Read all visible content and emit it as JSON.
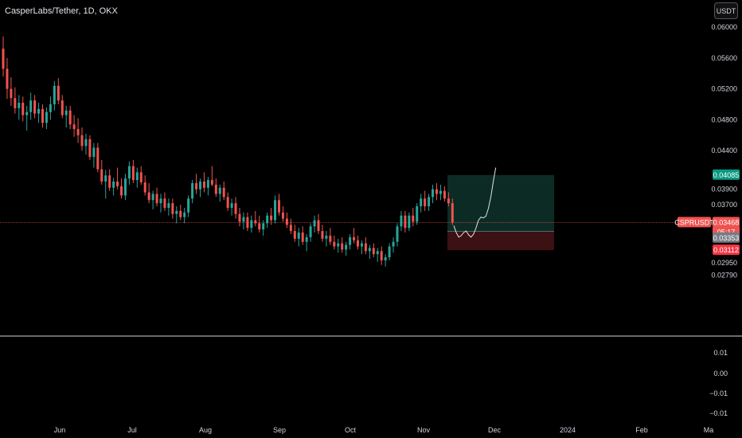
{
  "header": {
    "title": "CasperLabs/Tether, 1D, OKX",
    "currency_button": "USDT"
  },
  "chart_data": {
    "type": "candlestick",
    "symbol": "CSPRUSDT",
    "price_axis": {
      "ticks": [
        "0.06000",
        "0.05600",
        "0.05200",
        "0.04800",
        "0.04400",
        "0.03900",
        "0.03700",
        "0.02950",
        "0.02790"
      ],
      "tick_values": [
        0.06,
        0.056,
        0.052,
        0.048,
        0.044,
        0.039,
        0.037,
        0.0295,
        0.0279
      ]
    },
    "time_axis": {
      "labels": [
        "Jun",
        "Jul",
        "Aug",
        "Sep",
        "Oct",
        "Nov",
        "Dec",
        "2024",
        "Feb",
        "Ma"
      ]
    },
    "price_labels": {
      "target": "0.04085",
      "current": "0.03468",
      "countdown": "05:17",
      "entry": "0.03353",
      "stop": "0.03112"
    },
    "position": {
      "entry": 0.03353,
      "target": 0.04085,
      "stop": 0.03112
    },
    "indicator_axis": {
      "ticks": [
        "0.01",
        "0.00",
        "−0.01",
        "−0.01"
      ]
    },
    "colors": {
      "up": "#26a69a",
      "down": "#ef5350",
      "target_zone": "#0d2b25",
      "stop_zone": "#3b1114",
      "price_line": "#ef5350"
    },
    "candles": [
      [
        0.0572,
        0.0588,
        0.0536,
        0.0546
      ],
      [
        0.0546,
        0.056,
        0.0507,
        0.052
      ],
      [
        0.052,
        0.0535,
        0.0498,
        0.0508
      ],
      [
        0.0508,
        0.0522,
        0.0488,
        0.0495
      ],
      [
        0.0495,
        0.0512,
        0.048,
        0.0502
      ],
      [
        0.0502,
        0.051,
        0.0478,
        0.0486
      ],
      [
        0.0486,
        0.0498,
        0.0466,
        0.049
      ],
      [
        0.049,
        0.0515,
        0.048,
        0.0505
      ],
      [
        0.0505,
        0.0512,
        0.0482,
        0.0488
      ],
      [
        0.0488,
        0.0502,
        0.0476,
        0.0494
      ],
      [
        0.0494,
        0.05,
        0.047,
        0.0476
      ],
      [
        0.0476,
        0.0496,
        0.0468,
        0.049
      ],
      [
        0.049,
        0.051,
        0.048,
        0.05
      ],
      [
        0.05,
        0.053,
        0.0492,
        0.0524
      ],
      [
        0.0524,
        0.0534,
        0.05,
        0.0505
      ],
      [
        0.0505,
        0.0512,
        0.0482,
        0.0486
      ],
      [
        0.0486,
        0.0498,
        0.047,
        0.0492
      ],
      [
        0.0492,
        0.0498,
        0.0468,
        0.0474
      ],
      [
        0.0474,
        0.0486,
        0.0458,
        0.0468
      ],
      [
        0.0468,
        0.0482,
        0.045,
        0.046
      ],
      [
        0.046,
        0.047,
        0.044,
        0.0446
      ],
      [
        0.0446,
        0.0462,
        0.0435,
        0.0455
      ],
      [
        0.0455,
        0.046,
        0.0428,
        0.0432
      ],
      [
        0.0432,
        0.045,
        0.0418,
        0.0444
      ],
      [
        0.0444,
        0.045,
        0.0412,
        0.0416
      ],
      [
        0.0416,
        0.0428,
        0.0396,
        0.04
      ],
      [
        0.04,
        0.0415,
        0.0378,
        0.0408
      ],
      [
        0.0408,
        0.0416,
        0.0388,
        0.0392
      ],
      [
        0.0392,
        0.0405,
        0.0382,
        0.04
      ],
      [
        0.04,
        0.0418,
        0.039,
        0.0394
      ],
      [
        0.0394,
        0.0404,
        0.0378,
        0.0382
      ],
      [
        0.0382,
        0.041,
        0.0376,
        0.0404
      ],
      [
        0.0404,
        0.0426,
        0.0396,
        0.042
      ],
      [
        0.042,
        0.0428,
        0.0398,
        0.0402
      ],
      [
        0.0402,
        0.0418,
        0.0392,
        0.0412
      ],
      [
        0.0412,
        0.042,
        0.0396,
        0.0399
      ],
      [
        0.0399,
        0.0408,
        0.0382,
        0.0386
      ],
      [
        0.0386,
        0.0398,
        0.0372,
        0.0376
      ],
      [
        0.0376,
        0.0388,
        0.0364,
        0.0384
      ],
      [
        0.0384,
        0.0392,
        0.0368,
        0.0372
      ],
      [
        0.0372,
        0.0384,
        0.036,
        0.0378
      ],
      [
        0.0378,
        0.0386,
        0.0362,
        0.0366
      ],
      [
        0.0366,
        0.0378,
        0.0356,
        0.0372
      ],
      [
        0.0372,
        0.0378,
        0.0352,
        0.0358
      ],
      [
        0.0358,
        0.0368,
        0.0346,
        0.0362
      ],
      [
        0.0362,
        0.037,
        0.035,
        0.0354
      ],
      [
        0.0354,
        0.0366,
        0.0346,
        0.036
      ],
      [
        0.036,
        0.0382,
        0.0354,
        0.0378
      ],
      [
        0.0378,
        0.0402,
        0.0372,
        0.0398
      ],
      [
        0.0398,
        0.041,
        0.0384,
        0.039
      ],
      [
        0.039,
        0.0404,
        0.038,
        0.04
      ],
      [
        0.04,
        0.0412,
        0.0386,
        0.0392
      ],
      [
        0.0392,
        0.0406,
        0.0382,
        0.0402
      ],
      [
        0.0402,
        0.042,
        0.0394,
        0.0396
      ],
      [
        0.0396,
        0.0404,
        0.038,
        0.0384
      ],
      [
        0.0384,
        0.0396,
        0.0374,
        0.0392
      ],
      [
        0.0392,
        0.04,
        0.0376,
        0.038
      ],
      [
        0.038,
        0.0386,
        0.0362,
        0.0366
      ],
      [
        0.0366,
        0.0378,
        0.0356,
        0.0372
      ],
      [
        0.0372,
        0.038,
        0.0352,
        0.0358
      ],
      [
        0.0358,
        0.0366,
        0.0342,
        0.0348
      ],
      [
        0.0348,
        0.036,
        0.0338,
        0.0354
      ],
      [
        0.0354,
        0.036,
        0.0336,
        0.034
      ],
      [
        0.034,
        0.0356,
        0.0334,
        0.035
      ],
      [
        0.035,
        0.0362,
        0.0342,
        0.0346
      ],
      [
        0.0346,
        0.0356,
        0.0334,
        0.0338
      ],
      [
        0.0338,
        0.035,
        0.033,
        0.0346
      ],
      [
        0.0346,
        0.036,
        0.034,
        0.0356
      ],
      [
        0.0356,
        0.0366,
        0.0344,
        0.035
      ],
      [
        0.035,
        0.0382,
        0.0346,
        0.0376
      ],
      [
        0.0376,
        0.0384,
        0.0356,
        0.036
      ],
      [
        0.036,
        0.0368,
        0.0348,
        0.0352
      ],
      [
        0.0352,
        0.036,
        0.034,
        0.0344
      ],
      [
        0.0344,
        0.0352,
        0.0332,
        0.0336
      ],
      [
        0.0336,
        0.0344,
        0.0322,
        0.0326
      ],
      [
        0.0326,
        0.034,
        0.0316,
        0.0334
      ],
      [
        0.0334,
        0.0342,
        0.0318,
        0.0322
      ],
      [
        0.0322,
        0.0332,
        0.031,
        0.0328
      ],
      [
        0.0328,
        0.0346,
        0.0322,
        0.0342
      ],
      [
        0.0342,
        0.0356,
        0.0334,
        0.035
      ],
      [
        0.035,
        0.0358,
        0.0332,
        0.0336
      ],
      [
        0.0336,
        0.0344,
        0.0322,
        0.0326
      ],
      [
        0.0326,
        0.0336,
        0.0316,
        0.033
      ],
      [
        0.033,
        0.034,
        0.0318,
        0.0322
      ],
      [
        0.0322,
        0.033,
        0.0312,
        0.0316
      ],
      [
        0.0316,
        0.0326,
        0.0308,
        0.032
      ],
      [
        0.032,
        0.0328,
        0.0308,
        0.0312
      ],
      [
        0.0312,
        0.0322,
        0.0304,
        0.0318
      ],
      [
        0.0318,
        0.0332,
        0.0312,
        0.0328
      ],
      [
        0.0328,
        0.034,
        0.032,
        0.0324
      ],
      [
        0.0324,
        0.033,
        0.0312,
        0.0316
      ],
      [
        0.0316,
        0.0324,
        0.0306,
        0.032
      ],
      [
        0.032,
        0.0328,
        0.0306,
        0.031
      ],
      [
        0.031,
        0.0318,
        0.03,
        0.0314
      ],
      [
        0.0314,
        0.032,
        0.0302,
        0.0306
      ],
      [
        0.0306,
        0.0314,
        0.0296,
        0.031
      ],
      [
        0.031,
        0.0316,
        0.0292,
        0.0298
      ],
      [
        0.0298,
        0.0306,
        0.029,
        0.0302
      ],
      [
        0.0302,
        0.032,
        0.0298,
        0.0316
      ],
      [
        0.0316,
        0.0328,
        0.0308,
        0.0322
      ],
      [
        0.0322,
        0.0346,
        0.0316,
        0.0342
      ],
      [
        0.0342,
        0.0362,
        0.0336,
        0.0356
      ],
      [
        0.0356,
        0.0362,
        0.0334,
        0.034
      ],
      [
        0.034,
        0.036,
        0.0336,
        0.0356
      ],
      [
        0.0356,
        0.0366,
        0.0342,
        0.0348
      ],
      [
        0.0348,
        0.0372,
        0.0344,
        0.0368
      ],
      [
        0.0368,
        0.0384,
        0.036,
        0.0378
      ],
      [
        0.0378,
        0.0388,
        0.0362,
        0.0368
      ],
      [
        0.0368,
        0.0384,
        0.0362,
        0.038
      ],
      [
        0.038,
        0.0396,
        0.0372,
        0.039
      ],
      [
        0.039,
        0.0398,
        0.0376,
        0.0384
      ],
      [
        0.0384,
        0.0396,
        0.0376,
        0.0388
      ],
      [
        0.0388,
        0.0394,
        0.0374,
        0.0378
      ],
      [
        0.0378,
        0.0386,
        0.0368,
        0.0372
      ],
      [
        0.0372,
        0.0378,
        0.0344,
        0.0347
      ]
    ],
    "projection_path": [
      [
        0,
        0.0343
      ],
      [
        1,
        0.0334
      ],
      [
        2,
        0.0328
      ],
      [
        3,
        0.033
      ],
      [
        4,
        0.0334
      ],
      [
        5,
        0.0336
      ],
      [
        6,
        0.0331
      ],
      [
        7,
        0.0328
      ],
      [
        8,
        0.0332
      ],
      [
        9,
        0.034
      ],
      [
        10,
        0.035
      ],
      [
        11,
        0.0354
      ],
      [
        12,
        0.0353
      ],
      [
        13,
        0.0355
      ],
      [
        14,
        0.0365
      ],
      [
        15,
        0.038
      ],
      [
        16,
        0.04
      ],
      [
        17,
        0.0418
      ]
    ]
  }
}
